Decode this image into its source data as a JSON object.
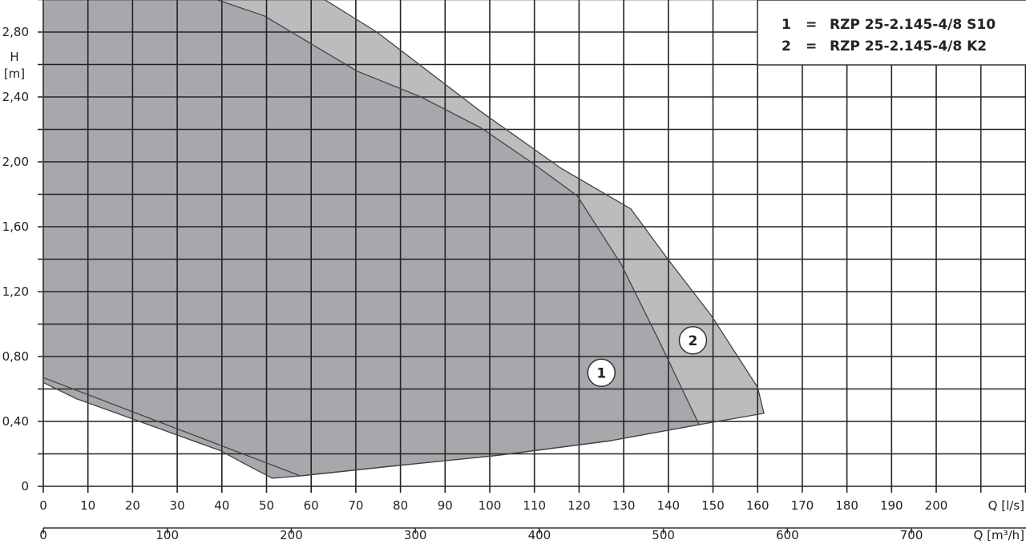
{
  "chart_data": {
    "type": "area",
    "title": "",
    "xlabel": "Q [l/s]",
    "xlabel2": "Q [m³/h]",
    "ylabel_line1": "H",
    "ylabel_line2": "[m]",
    "xlim": [
      0,
      220
    ],
    "ylim": [
      0,
      3.0
    ],
    "grid": true,
    "x_ticks": [
      0,
      10,
      20,
      30,
      40,
      50,
      60,
      70,
      80,
      90,
      100,
      110,
      120,
      130,
      140,
      150,
      160,
      170,
      180,
      190,
      200
    ],
    "x_tick_labels": [
      "0",
      "10",
      "20",
      "30",
      "40",
      "50",
      "60",
      "70",
      "80",
      "90",
      "100",
      "110",
      "120",
      "130",
      "140",
      "150",
      "160",
      "170",
      "180",
      "190",
      "200"
    ],
    "x2_ticks": [
      0,
      100,
      200,
      300,
      400,
      500,
      600,
      700
    ],
    "x2_tick_labels": [
      "0",
      "100",
      "200",
      "300",
      "400",
      "500",
      "600",
      "700"
    ],
    "y_ticks": [
      0,
      0.4,
      0.8,
      1.2,
      1.6,
      2.0,
      2.4,
      2.8
    ],
    "y_tick_labels": [
      "0",
      "0,40",
      "0,80",
      "1,20",
      "1,60",
      "2,00",
      "2,40",
      "2,80"
    ],
    "legend_position": "top-right",
    "legend": [
      {
        "key": "1",
        "eq": "=",
        "label": "RZP 25-2.145-4/8 S10"
      },
      {
        "key": "2",
        "eq": "=",
        "label": "RZP 25-2.145-4/8 K2"
      }
    ],
    "series": [
      {
        "id": "2",
        "color": "#bbbcbe",
        "marker_label": "2",
        "marker_at": [
          145.5,
          0.9
        ],
        "boundary": [
          [
            0,
            0.67
          ],
          [
            57.6,
            0.064
          ],
          [
            80,
            0.13
          ],
          [
            101.6,
            0.19
          ],
          [
            126.8,
            0.28
          ],
          [
            146.9,
            0.38
          ],
          [
            161.4,
            0.45
          ],
          [
            160,
            0.61
          ],
          [
            149.7,
            1.05
          ],
          [
            139.9,
            1.4
          ],
          [
            131.6,
            1.71
          ],
          [
            116,
            1.96
          ],
          [
            98,
            2.31
          ],
          [
            74.7,
            2.8
          ],
          [
            63,
            3.0
          ],
          [
            0,
            3.0
          ]
        ]
      },
      {
        "id": "1",
        "color": "#a7a8ab",
        "marker_label": "1",
        "marker_at": [
          125,
          0.7
        ],
        "boundary": [
          [
            0,
            0.64
          ],
          [
            7.4,
            0.54
          ],
          [
            39.7,
            0.22
          ],
          [
            45,
            0.14
          ],
          [
            51.3,
            0.05
          ],
          [
            57.6,
            0.064
          ],
          [
            80,
            0.13
          ],
          [
            101.6,
            0.19
          ],
          [
            126.8,
            0.28
          ],
          [
            146.9,
            0.38
          ],
          [
            137.5,
            0.92
          ],
          [
            129.4,
            1.37
          ],
          [
            119.6,
            1.79
          ],
          [
            109.7,
            1.99
          ],
          [
            98,
            2.21
          ],
          [
            84.6,
            2.4
          ],
          [
            70.2,
            2.56
          ],
          [
            49.5,
            2.9
          ],
          [
            38.8,
            3.0
          ],
          [
            0,
            3.0
          ]
        ]
      }
    ]
  }
}
